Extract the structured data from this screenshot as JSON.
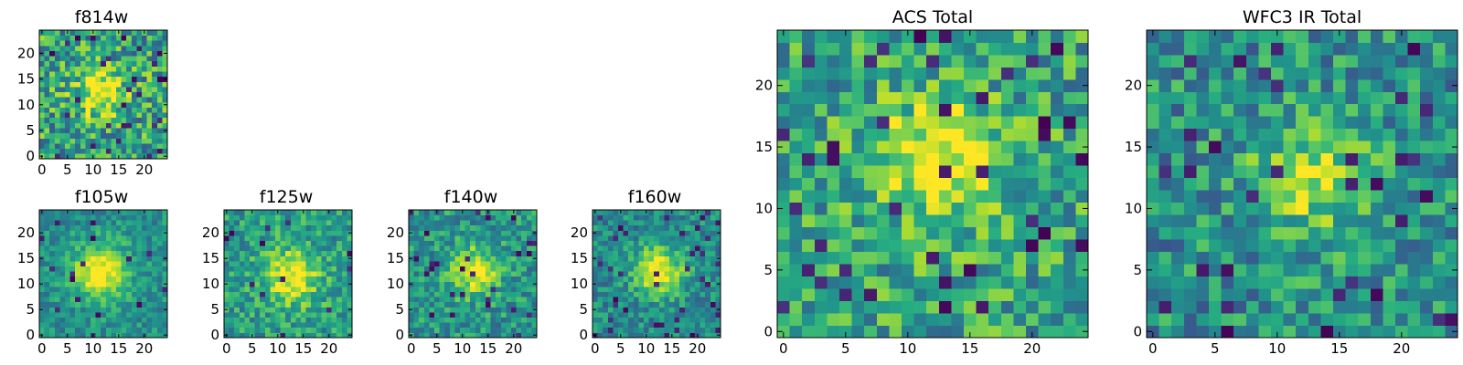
{
  "colormap": "viridis",
  "colors": {
    "background": "#ffffff",
    "axis": "#000000",
    "viridis_stops": [
      "#440154",
      "#472d7b",
      "#3b528b",
      "#2c728e",
      "#21918c",
      "#28ae80",
      "#5ec962",
      "#addc30",
      "#fde725"
    ]
  },
  "chart_data": [
    {
      "type": "heatmap",
      "title": "f814w",
      "xlabel": "",
      "ylabel": "",
      "shape": [
        25,
        25
      ],
      "xlim": [
        0,
        24
      ],
      "ylim": [
        0,
        24
      ],
      "xticks": [
        0,
        5,
        10,
        15,
        20
      ],
      "yticks": [
        0,
        5,
        10,
        15,
        20
      ],
      "source_center": [
        11.5,
        12.5
      ],
      "source_sigma": 3.2,
      "peak": 0.5,
      "noise": 0.3,
      "background": 0.58,
      "dark_pixel_fraction": 0.07,
      "seed": 11
    },
    {
      "type": "heatmap",
      "title": "f105w",
      "xlabel": "",
      "ylabel": "",
      "shape": [
        25,
        25
      ],
      "xlim": [
        0,
        24
      ],
      "ylim": [
        0,
        24
      ],
      "xticks": [
        0,
        5,
        10,
        15,
        20
      ],
      "yticks": [
        0,
        5,
        10,
        15,
        20
      ],
      "source_center": [
        11.5,
        12.5
      ],
      "source_sigma": 3.6,
      "peak": 0.55,
      "noise": 0.16,
      "background": 0.5,
      "dark_pixel_fraction": 0.02,
      "seed": 22
    },
    {
      "type": "heatmap",
      "title": "f125w",
      "xlabel": "",
      "ylabel": "",
      "shape": [
        25,
        25
      ],
      "xlim": [
        0,
        24
      ],
      "ylim": [
        0,
        24
      ],
      "xticks": [
        0,
        5,
        10,
        15,
        20
      ],
      "yticks": [
        0,
        5,
        10,
        15,
        20
      ],
      "source_center": [
        12.5,
        11.5
      ],
      "source_sigma": 3.8,
      "peak": 0.45,
      "noise": 0.2,
      "background": 0.55,
      "dark_pixel_fraction": 0.03,
      "seed": 33
    },
    {
      "type": "heatmap",
      "title": "f140w",
      "xlabel": "",
      "ylabel": "",
      "shape": [
        25,
        25
      ],
      "xlim": [
        0,
        24
      ],
      "ylim": [
        0,
        24
      ],
      "xticks": [
        0,
        5,
        10,
        15,
        20
      ],
      "yticks": [
        0,
        5,
        10,
        15,
        20
      ],
      "source_center": [
        12.5,
        12.5
      ],
      "source_sigma": 3.2,
      "peak": 0.5,
      "noise": 0.2,
      "background": 0.52,
      "dark_pixel_fraction": 0.04,
      "seed": 44
    },
    {
      "type": "heatmap",
      "title": "f160w",
      "xlabel": "",
      "ylabel": "",
      "shape": [
        25,
        25
      ],
      "xlim": [
        0,
        24
      ],
      "ylim": [
        0,
        24
      ],
      "xticks": [
        0,
        5,
        10,
        15,
        20
      ],
      "yticks": [
        0,
        5,
        10,
        15,
        20
      ],
      "source_center": [
        12.5,
        12.5
      ],
      "source_sigma": 3.3,
      "peak": 0.55,
      "noise": 0.18,
      "background": 0.48,
      "dark_pixel_fraction": 0.05,
      "seed": 55
    },
    {
      "type": "heatmap",
      "title": "ACS Total",
      "xlabel": "",
      "ylabel": "",
      "shape": [
        25,
        25
      ],
      "xlim": [
        0,
        24
      ],
      "ylim": [
        0,
        24
      ],
      "xticks": [
        0,
        5,
        10,
        15,
        20
      ],
      "yticks": [
        0,
        5,
        10,
        15,
        20
      ],
      "source_center": [
        12.5,
        14.0
      ],
      "source_sigma": 3.6,
      "peak": 0.42,
      "noise": 0.26,
      "background": 0.58,
      "dark_pixel_fraction": 0.05,
      "seed": 66
    },
    {
      "type": "heatmap",
      "title": "WFC3 IR Total",
      "xlabel": "",
      "ylabel": "",
      "shape": [
        25,
        25
      ],
      "xlim": [
        0,
        24
      ],
      "ylim": [
        0,
        24
      ],
      "xticks": [
        0,
        5,
        10,
        15,
        20
      ],
      "yticks": [
        0,
        5,
        10,
        15,
        20
      ],
      "source_center": [
        13.0,
        12.5
      ],
      "source_sigma": 3.3,
      "peak": 0.4,
      "noise": 0.24,
      "background": 0.5,
      "dark_pixel_fraction": 0.04,
      "seed": 77
    }
  ]
}
